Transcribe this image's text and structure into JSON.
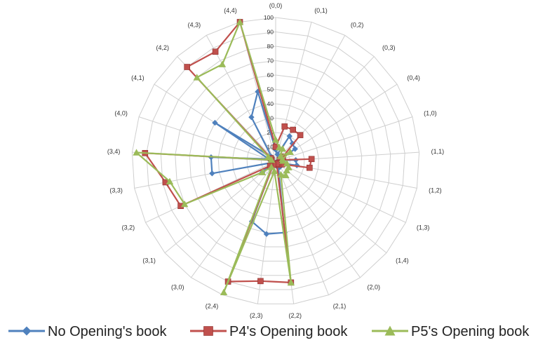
{
  "chart_data": {
    "type": "radar",
    "categories": [
      "(0,0)",
      "(0,1)",
      "(0,2)",
      "(0,3)",
      "(0,4)",
      "(1,0)",
      "(1,1)",
      "(1,2)",
      "(1,3)",
      "(1,4)",
      "(2,0)",
      "(2,1)",
      "(2,2)",
      "(2,3)",
      "(2,4)",
      "(3,0)",
      "(3,1)",
      "(3,2)",
      "(3,3)",
      "(3,4)",
      "(4,0)",
      "(4,1)",
      "(4,2)",
      "(4,3)",
      "(4,4)"
    ],
    "rlim": [
      0,
      100
    ],
    "ticks": [
      "0",
      "10",
      "20",
      "30",
      "40",
      "50",
      "60",
      "70",
      "80",
      "90",
      "100"
    ],
    "grid": true,
    "legend_position": "bottom",
    "series": [
      {
        "name": "No Opening's book",
        "color": "#4f81bd",
        "marker": "diamond",
        "values": [
          8,
          5,
          20,
          17,
          16,
          2,
          14,
          15,
          3,
          2,
          5,
          5,
          50,
          51,
          45,
          4,
          12,
          2,
          45,
          45,
          5,
          50,
          4,
          35,
          50
        ]
      },
      {
        "name": "P4's Opening book",
        "color": "#c0504d",
        "marker": "square",
        "values": [
          10,
          25,
          25,
          25,
          6,
          3,
          25,
          24,
          5,
          2,
          3,
          2,
          85,
          84,
          90,
          3,
          5,
          73,
          78,
          91,
          3,
          4,
          90,
          87,
          100
        ]
      },
      {
        "name": "P5's Opening book",
        "color": "#9bbb59",
        "marker": "triangle",
        "values": [
          15,
          10,
          10,
          5,
          12,
          5,
          5,
          8,
          10,
          10,
          12,
          10,
          85,
          7,
          98,
          5,
          12,
          70,
          75,
          97,
          3,
          6,
          80,
          77,
          100
        ]
      }
    ]
  }
}
